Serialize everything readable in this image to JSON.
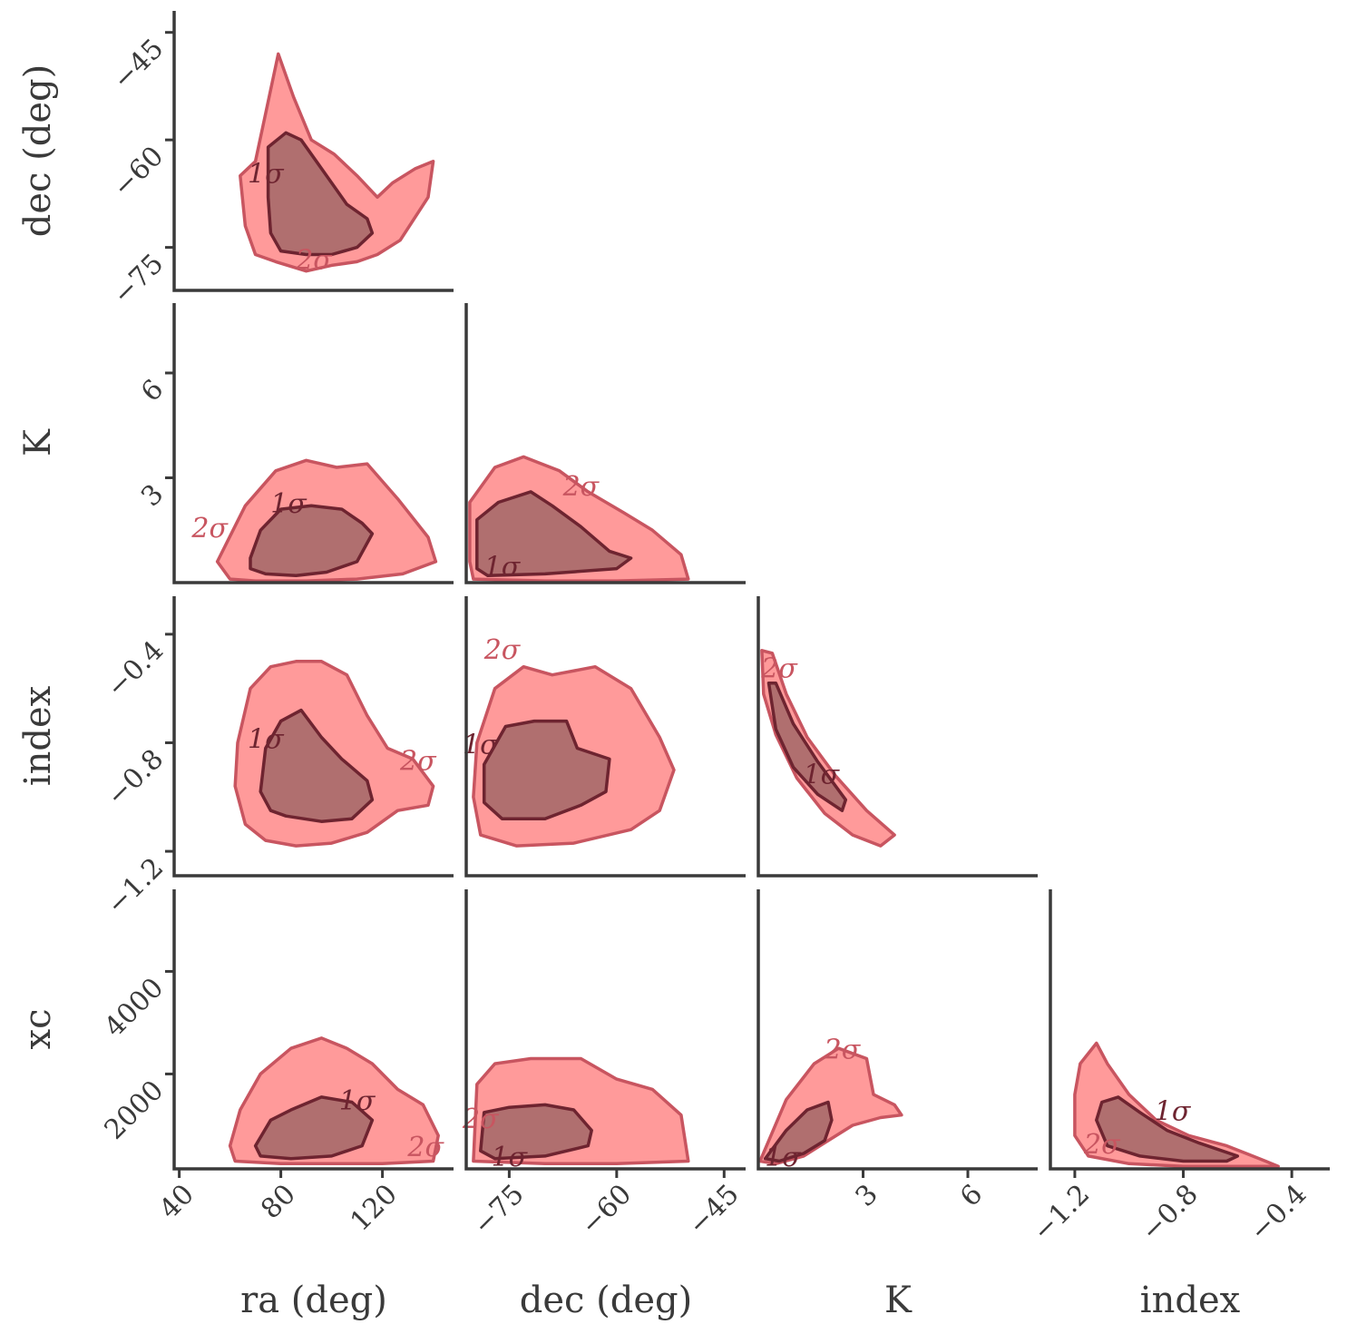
{
  "chart_data": {
    "type": "corner",
    "parameters": [
      {
        "key": "ra",
        "label": "ra (deg)",
        "range": [
          38,
          148
        ],
        "ticks": [
          {
            "v": 40,
            "t": "40"
          },
          {
            "v": 80,
            "t": "80"
          },
          {
            "v": 120,
            "t": "120"
          }
        ]
      },
      {
        "key": "dec",
        "label": "dec (deg)",
        "range": [
          -81,
          -42
        ],
        "ticks": [
          {
            "v": -75,
            "t": "−75"
          },
          {
            "v": -60,
            "t": "−60"
          },
          {
            "v": -45,
            "t": "−45"
          }
        ]
      },
      {
        "key": "K",
        "label": "K",
        "range": [
          0,
          8
        ],
        "ticks": [
          {
            "v": 3,
            "t": "3"
          },
          {
            "v": 6,
            "t": "6"
          }
        ]
      },
      {
        "key": "index",
        "label": "index",
        "range": [
          -1.29,
          -0.26
        ],
        "ticks": [
          {
            "v": -1.2,
            "t": "−1.2"
          },
          {
            "v": -0.8,
            "t": "−0.8"
          },
          {
            "v": -0.4,
            "t": "−0.4"
          }
        ]
      },
      {
        "key": "xc",
        "label": "xc",
        "range": [
          150,
          5600
        ],
        "ticks": [
          {
            "v": 2000,
            "t": "2000"
          },
          {
            "v": 4000,
            "t": "4000"
          }
        ]
      }
    ],
    "colors": {
      "outer_fill": "#ff9a9a",
      "outer_line": "#c85560",
      "inner_fill": "#b06f6f",
      "inner_line": "#6e2430",
      "axis": "#3a3a3a"
    },
    "sigma_labels": {
      "one": "1σ",
      "two": "2σ"
    },
    "panels": [
      {
        "row": 1,
        "col": 0,
        "outer": [
          [
            70,
            -63
          ],
          [
            73,
            -58
          ],
          [
            79,
            -48
          ],
          [
            85,
            -54
          ],
          [
            92,
            -60
          ],
          [
            101,
            -62
          ],
          [
            110,
            -65
          ],
          [
            118,
            -68
          ],
          [
            124,
            -66
          ],
          [
            133,
            -64
          ],
          [
            140,
            -63
          ],
          [
            138,
            -68
          ],
          [
            127,
            -74
          ],
          [
            118,
            -76
          ],
          [
            110,
            -77
          ],
          [
            100,
            -77.5
          ],
          [
            90,
            -78.3
          ],
          [
            78,
            -77
          ],
          [
            70,
            -76
          ],
          [
            66,
            -72
          ],
          [
            64,
            -65
          ]
        ],
        "inner": [
          [
            75,
            -61
          ],
          [
            82,
            -59
          ],
          [
            88,
            -60
          ],
          [
            94,
            -63
          ],
          [
            100,
            -66
          ],
          [
            106,
            -69
          ],
          [
            114,
            -71
          ],
          [
            116,
            -73
          ],
          [
            110,
            -75
          ],
          [
            100,
            -76
          ],
          [
            90,
            -76
          ],
          [
            80,
            -75.5
          ],
          [
            76,
            -73
          ],
          [
            75,
            -68
          ]
        ],
        "l1": [
          74,
          -66
        ],
        "l2": [
          93,
          -78
        ]
      },
      {
        "row": 2,
        "col": 0,
        "outer": [
          [
            55,
            0.6
          ],
          [
            66,
            2.2
          ],
          [
            78,
            3.2
          ],
          [
            90,
            3.5
          ],
          [
            102,
            3.3
          ],
          [
            114,
            3.4
          ],
          [
            126,
            2.4
          ],
          [
            138,
            1.3
          ],
          [
            141,
            0.6
          ],
          [
            128,
            0.25
          ],
          [
            110,
            0.1
          ],
          [
            90,
            0.05
          ],
          [
            70,
            0.05
          ],
          [
            60,
            0.1
          ]
        ],
        "inner": [
          [
            68,
            0.7
          ],
          [
            72,
            1.5
          ],
          [
            80,
            2.1
          ],
          [
            92,
            2.2
          ],
          [
            104,
            2.1
          ],
          [
            112,
            1.7
          ],
          [
            116,
            1.4
          ],
          [
            110,
            0.6
          ],
          [
            98,
            0.3
          ],
          [
            86,
            0.2
          ],
          [
            74,
            0.25
          ],
          [
            68,
            0.4
          ]
        ],
        "l1": [
          83,
          2.0
        ],
        "l2": [
          52,
          1.3
        ]
      },
      {
        "row": 2,
        "col": 1,
        "outer": [
          [
            -80.5,
            0.6
          ],
          [
            -80.5,
            2.3
          ],
          [
            -77,
            3.3
          ],
          [
            -73,
            3.6
          ],
          [
            -68,
            3.2
          ],
          [
            -64,
            2.6
          ],
          [
            -59,
            2.0
          ],
          [
            -55,
            1.5
          ],
          [
            -51,
            0.8
          ],
          [
            -50,
            0.1
          ],
          [
            -60,
            0.05
          ],
          [
            -70,
            0.05
          ],
          [
            -80,
            0.1
          ]
        ],
        "inner": [
          [
            -79.5,
            0.4
          ],
          [
            -79.5,
            1.8
          ],
          [
            -76.5,
            2.3
          ],
          [
            -72,
            2.6
          ],
          [
            -69,
            2.2
          ],
          [
            -65,
            1.6
          ],
          [
            -61,
            0.9
          ],
          [
            -58,
            0.7
          ],
          [
            -60,
            0.4
          ],
          [
            -70,
            0.25
          ],
          [
            -78,
            0.2
          ]
        ],
        "l1": [
          -76,
          0.2
        ],
        "l2": [
          -65,
          2.5
        ]
      },
      {
        "row": 3,
        "col": 0,
        "outer": [
          [
            63,
            -0.8
          ],
          [
            68,
            -0.6
          ],
          [
            76,
            -0.52
          ],
          [
            86,
            -0.5
          ],
          [
            96,
            -0.5
          ],
          [
            106,
            -0.55
          ],
          [
            114,
            -0.7
          ],
          [
            122,
            -0.82
          ],
          [
            132,
            -0.86
          ],
          [
            140,
            -0.96
          ],
          [
            138,
            -1.03
          ],
          [
            126,
            -1.05
          ],
          [
            114,
            -1.13
          ],
          [
            100,
            -1.17
          ],
          [
            86,
            -1.18
          ],
          [
            74,
            -1.16
          ],
          [
            66,
            -1.1
          ],
          [
            62,
            -0.96
          ]
        ],
        "inner": [
          [
            72,
            -0.98
          ],
          [
            74,
            -0.82
          ],
          [
            80,
            -0.72
          ],
          [
            88,
            -0.68
          ],
          [
            96,
            -0.78
          ],
          [
            104,
            -0.86
          ],
          [
            114,
            -0.94
          ],
          [
            116,
            -1.01
          ],
          [
            108,
            -1.08
          ],
          [
            96,
            -1.09
          ],
          [
            82,
            -1.07
          ],
          [
            76,
            -1.05
          ]
        ],
        "l1": [
          74,
          -0.82
        ],
        "l2": [
          134,
          -0.9
        ]
      },
      {
        "row": 3,
        "col": 1,
        "outer": [
          [
            -80,
            -1.0
          ],
          [
            -79.5,
            -0.8
          ],
          [
            -77,
            -0.6
          ],
          [
            -73,
            -0.52
          ],
          [
            -69,
            -0.55
          ],
          [
            -63,
            -0.52
          ],
          [
            -58,
            -0.6
          ],
          [
            -54,
            -0.78
          ],
          [
            -52,
            -0.9
          ],
          [
            -54,
            -1.05
          ],
          [
            -58,
            -1.12
          ],
          [
            -66,
            -1.17
          ],
          [
            -74,
            -1.18
          ],
          [
            -79,
            -1.14
          ]
        ],
        "inner": [
          [
            -78.5,
            -0.88
          ],
          [
            -75.5,
            -0.74
          ],
          [
            -71.5,
            -0.72
          ],
          [
            -67,
            -0.72
          ],
          [
            -65.5,
            -0.82
          ],
          [
            -61,
            -0.86
          ],
          [
            -61.5,
            -0.98
          ],
          [
            -65,
            -1.03
          ],
          [
            -70,
            -1.08
          ],
          [
            -76,
            -1.08
          ],
          [
            -78.5,
            -1.02
          ]
        ],
        "l1": [
          -79,
          -0.84
        ],
        "l2": [
          -76,
          -0.49
        ]
      },
      {
        "row": 3,
        "col": 2,
        "outer": [
          [
            0.1,
            -0.46
          ],
          [
            0.4,
            -0.47
          ],
          [
            0.8,
            -0.62
          ],
          [
            1.4,
            -0.78
          ],
          [
            2.2,
            -0.92
          ],
          [
            3.1,
            -1.05
          ],
          [
            3.9,
            -1.14
          ],
          [
            3.5,
            -1.18
          ],
          [
            2.7,
            -1.14
          ],
          [
            1.9,
            -1.06
          ],
          [
            1.1,
            -0.93
          ],
          [
            0.5,
            -0.77
          ],
          [
            0.15,
            -0.62
          ]
        ],
        "inner": [
          [
            0.3,
            -0.58
          ],
          [
            0.5,
            -0.58
          ],
          [
            1.0,
            -0.73
          ],
          [
            1.7,
            -0.87
          ],
          [
            2.5,
            -1.01
          ],
          [
            2.4,
            -1.05
          ],
          [
            1.7,
            -0.99
          ],
          [
            1.0,
            -0.89
          ],
          [
            0.5,
            -0.75
          ]
        ],
        "l1": [
          1.8,
          -0.95
        ],
        "l2": [
          0.6,
          -0.56
        ]
      },
      {
        "row": 4,
        "col": 0,
        "outer": [
          [
            60,
            600
          ],
          [
            64,
            1300
          ],
          [
            72,
            2000
          ],
          [
            84,
            2500
          ],
          [
            96,
            2700
          ],
          [
            106,
            2500
          ],
          [
            116,
            2200
          ],
          [
            126,
            1700
          ],
          [
            136,
            1400
          ],
          [
            142,
            800
          ],
          [
            140,
            300
          ],
          [
            120,
            250
          ],
          [
            100,
            250
          ],
          [
            80,
            250
          ],
          [
            62,
            300
          ]
        ],
        "inner": [
          [
            70,
            600
          ],
          [
            76,
            1100
          ],
          [
            84,
            1300
          ],
          [
            96,
            1550
          ],
          [
            108,
            1450
          ],
          [
            116,
            1100
          ],
          [
            112,
            600
          ],
          [
            100,
            400
          ],
          [
            84,
            350
          ],
          [
            72,
            400
          ]
        ],
        "l1": [
          110,
          1300
        ],
        "l2": [
          137,
          400
        ]
      },
      {
        "row": 4,
        "col": 1,
        "outer": [
          [
            -80,
            300
          ],
          [
            -79.5,
            1800
          ],
          [
            -77,
            2200
          ],
          [
            -72,
            2300
          ],
          [
            -65,
            2300
          ],
          [
            -60,
            1900
          ],
          [
            -55,
            1700
          ],
          [
            -51,
            1200
          ],
          [
            -50,
            300
          ],
          [
            -60,
            250
          ],
          [
            -70,
            250
          ]
        ],
        "inner": [
          [
            -79,
            500
          ],
          [
            -78.5,
            1250
          ],
          [
            -75,
            1350
          ],
          [
            -70,
            1400
          ],
          [
            -66,
            1300
          ],
          [
            -63.5,
            900
          ],
          [
            -64,
            600
          ],
          [
            -70,
            400
          ],
          [
            -77,
            350
          ]
        ],
        "l1": [
          -75,
          200
        ],
        "l2": [
          -79,
          950
        ]
      },
      {
        "row": 4,
        "col": 2,
        "outer": [
          [
            0.05,
            300
          ],
          [
            0.8,
            1500
          ],
          [
            1.6,
            2200
          ],
          [
            2.3,
            2500
          ],
          [
            3.1,
            2300
          ],
          [
            3.3,
            1600
          ],
          [
            3.9,
            1400
          ],
          [
            4.1,
            1200
          ],
          [
            3.5,
            1150
          ],
          [
            2.7,
            1000
          ],
          [
            2.0,
            700
          ],
          [
            1.3,
            400
          ],
          [
            0.5,
            250
          ]
        ],
        "inner": [
          [
            0.2,
            350
          ],
          [
            0.8,
            900
          ],
          [
            1.4,
            1300
          ],
          [
            2.0,
            1450
          ],
          [
            2.1,
            1100
          ],
          [
            1.9,
            700
          ],
          [
            1.3,
            450
          ],
          [
            0.6,
            300
          ]
        ],
        "l1": [
          0.7,
          200
        ],
        "l2": [
          2.4,
          2300
        ]
      },
      {
        "row": 4,
        "col": 3,
        "outer": [
          [
            -1.2,
            1600
          ],
          [
            -1.18,
            2200
          ],
          [
            -1.12,
            2600
          ],
          [
            -1.08,
            2200
          ],
          [
            -1.0,
            1600
          ],
          [
            -0.9,
            1100
          ],
          [
            -0.78,
            800
          ],
          [
            -0.64,
            600
          ],
          [
            -0.52,
            350
          ],
          [
            -0.45,
            200
          ],
          [
            -0.6,
            200
          ],
          [
            -0.8,
            200
          ],
          [
            -1.0,
            250
          ],
          [
            -1.15,
            400
          ],
          [
            -1.2,
            800
          ]
        ],
        "inner": [
          [
            -1.12,
            1100
          ],
          [
            -1.1,
            1450
          ],
          [
            -1.04,
            1550
          ],
          [
            -0.96,
            1250
          ],
          [
            -0.86,
            900
          ],
          [
            -0.74,
            650
          ],
          [
            -0.6,
            400
          ],
          [
            -0.64,
            300
          ],
          [
            -0.8,
            300
          ],
          [
            -0.96,
            400
          ],
          [
            -1.08,
            600
          ]
        ],
        "l1": [
          -0.84,
          1100
        ],
        "l2": [
          -1.1,
          450
        ]
      }
    ]
  }
}
